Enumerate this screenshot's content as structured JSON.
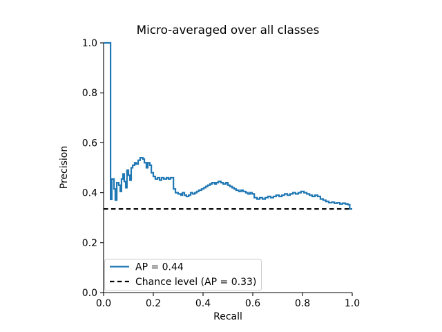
{
  "figure": {
    "title": "Micro-averaged over all classes"
  },
  "colors": {
    "curve": "#1f77b4",
    "chance": "#000000",
    "spine": "#000000",
    "tick": "#000000",
    "legend_border": "#cccccc",
    "legend_bg": "#ffffff",
    "background": "#ffffff"
  },
  "chart_data": {
    "type": "line",
    "title": "Micro-averaged over all classes",
    "xlabel": "Recall",
    "ylabel": "Precision",
    "xlim": [
      0.0,
      1.0
    ],
    "ylim": [
      0.0,
      1.0
    ],
    "xticks": [
      0.0,
      0.2,
      0.4,
      0.6,
      0.8,
      1.0
    ],
    "xtick_labels": [
      "0.0",
      "0.2",
      "0.4",
      "0.6",
      "0.8",
      "1.0"
    ],
    "yticks": [
      0.0,
      0.2,
      0.4,
      0.6,
      0.8,
      1.0
    ],
    "ytick_labels": [
      "0.0",
      "0.2",
      "0.4",
      "0.6",
      "0.8",
      "1.0"
    ],
    "grid": false,
    "legend_position": "lower left",
    "series": [
      {
        "name": "AP = 0.44",
        "style": "solid",
        "step": "post",
        "color": "#1f77b4",
        "points": [
          [
            0.0,
            1.0
          ],
          [
            0.028,
            0.374
          ],
          [
            0.033,
            0.455
          ],
          [
            0.042,
            0.415
          ],
          [
            0.047,
            0.37
          ],
          [
            0.053,
            0.44
          ],
          [
            0.061,
            0.43
          ],
          [
            0.067,
            0.405
          ],
          [
            0.072,
            0.455
          ],
          [
            0.078,
            0.475
          ],
          [
            0.083,
            0.445
          ],
          [
            0.089,
            0.42
          ],
          [
            0.094,
            0.49
          ],
          [
            0.1,
            0.47
          ],
          [
            0.106,
            0.45
          ],
          [
            0.111,
            0.5
          ],
          [
            0.117,
            0.51
          ],
          [
            0.125,
            0.52
          ],
          [
            0.131,
            0.515
          ],
          [
            0.139,
            0.53
          ],
          [
            0.147,
            0.54
          ],
          [
            0.158,
            0.535
          ],
          [
            0.164,
            0.52
          ],
          [
            0.172,
            0.5
          ],
          [
            0.178,
            0.52
          ],
          [
            0.186,
            0.51
          ],
          [
            0.192,
            0.48
          ],
          [
            0.2,
            0.465
          ],
          [
            0.208,
            0.455
          ],
          [
            0.217,
            0.46
          ],
          [
            0.225,
            0.45
          ],
          [
            0.233,
            0.46
          ],
          [
            0.242,
            0.455
          ],
          [
            0.253,
            0.46
          ],
          [
            0.261,
            0.455
          ],
          [
            0.269,
            0.46
          ],
          [
            0.281,
            0.415
          ],
          [
            0.289,
            0.4
          ],
          [
            0.3,
            0.395
          ],
          [
            0.311,
            0.39
          ],
          [
            0.317,
            0.4
          ],
          [
            0.325,
            0.39
          ],
          [
            0.333,
            0.385
          ],
          [
            0.342,
            0.39
          ],
          [
            0.35,
            0.4
          ],
          [
            0.358,
            0.395
          ],
          [
            0.367,
            0.4
          ],
          [
            0.375,
            0.405
          ],
          [
            0.383,
            0.41
          ],
          [
            0.394,
            0.415
          ],
          [
            0.403,
            0.42
          ],
          [
            0.411,
            0.425
          ],
          [
            0.419,
            0.43
          ],
          [
            0.428,
            0.435
          ],
          [
            0.436,
            0.44
          ],
          [
            0.447,
            0.435
          ],
          [
            0.453,
            0.44
          ],
          [
            0.461,
            0.445
          ],
          [
            0.472,
            0.44
          ],
          [
            0.481,
            0.435
          ],
          [
            0.492,
            0.44
          ],
          [
            0.5,
            0.43
          ],
          [
            0.508,
            0.425
          ],
          [
            0.517,
            0.42
          ],
          [
            0.525,
            0.415
          ],
          [
            0.533,
            0.41
          ],
          [
            0.544,
            0.405
          ],
          [
            0.553,
            0.41
          ],
          [
            0.561,
            0.405
          ],
          [
            0.572,
            0.4
          ],
          [
            0.581,
            0.395
          ],
          [
            0.589,
            0.4
          ],
          [
            0.597,
            0.395
          ],
          [
            0.606,
            0.38
          ],
          [
            0.617,
            0.375
          ],
          [
            0.628,
            0.38
          ],
          [
            0.639,
            0.375
          ],
          [
            0.65,
            0.38
          ],
          [
            0.661,
            0.385
          ],
          [
            0.672,
            0.38
          ],
          [
            0.683,
            0.385
          ],
          [
            0.694,
            0.39
          ],
          [
            0.706,
            0.385
          ],
          [
            0.717,
            0.39
          ],
          [
            0.728,
            0.395
          ],
          [
            0.739,
            0.39
          ],
          [
            0.75,
            0.395
          ],
          [
            0.761,
            0.4
          ],
          [
            0.772,
            0.395
          ],
          [
            0.783,
            0.4
          ],
          [
            0.794,
            0.405
          ],
          [
            0.806,
            0.4
          ],
          [
            0.817,
            0.395
          ],
          [
            0.828,
            0.39
          ],
          [
            0.839,
            0.385
          ],
          [
            0.85,
            0.39
          ],
          [
            0.861,
            0.385
          ],
          [
            0.872,
            0.375
          ],
          [
            0.883,
            0.37
          ],
          [
            0.894,
            0.365
          ],
          [
            0.906,
            0.36
          ],
          [
            0.917,
            0.362
          ],
          [
            0.928,
            0.358
          ],
          [
            0.939,
            0.36
          ],
          [
            0.95,
            0.355
          ],
          [
            0.961,
            0.358
          ],
          [
            0.972,
            0.355
          ],
          [
            0.983,
            0.352
          ],
          [
            0.99,
            0.335
          ],
          [
            1.0,
            0.335
          ]
        ]
      },
      {
        "name": "Chance level (AP = 0.33)",
        "style": "dashed",
        "step": "none",
        "color": "#000000",
        "points": [
          [
            0.0,
            0.335
          ],
          [
            1.0,
            0.335
          ]
        ]
      }
    ]
  }
}
